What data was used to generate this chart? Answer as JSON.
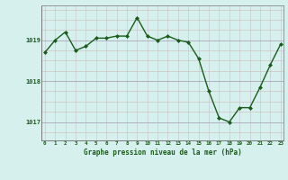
{
  "x": [
    0,
    1,
    2,
    3,
    4,
    5,
    6,
    7,
    8,
    9,
    10,
    11,
    12,
    13,
    14,
    15,
    16,
    17,
    18,
    19,
    20,
    21,
    22,
    23
  ],
  "y": [
    1018.7,
    1019.0,
    1019.2,
    1018.75,
    1018.85,
    1019.05,
    1019.05,
    1019.1,
    1019.1,
    1019.55,
    1019.1,
    1019.0,
    1019.1,
    1019.0,
    1018.95,
    1018.55,
    1017.75,
    1017.1,
    1017.0,
    1017.35,
    1017.35,
    1017.85,
    1018.4,
    1018.9
  ],
  "line_color": "#1a5c1a",
  "marker_color": "#1a5c1a",
  "bg_color": "#d6f0ee",
  "grid_color_v": "#c8c8d8",
  "grid_color_h": "#d0b8b8",
  "xlabel": "Graphe pression niveau de la mer (hPa)",
  "xlabel_color": "#1a5c1a",
  "tick_label_color": "#1a5c1a",
  "yticks": [
    1017,
    1018,
    1019
  ],
  "ylim": [
    1016.55,
    1019.85
  ],
  "xlim": [
    -0.3,
    23.3
  ],
  "xticks": [
    0,
    1,
    2,
    3,
    4,
    5,
    6,
    7,
    8,
    9,
    10,
    11,
    12,
    13,
    14,
    15,
    16,
    17,
    18,
    19,
    20,
    21,
    22,
    23
  ]
}
